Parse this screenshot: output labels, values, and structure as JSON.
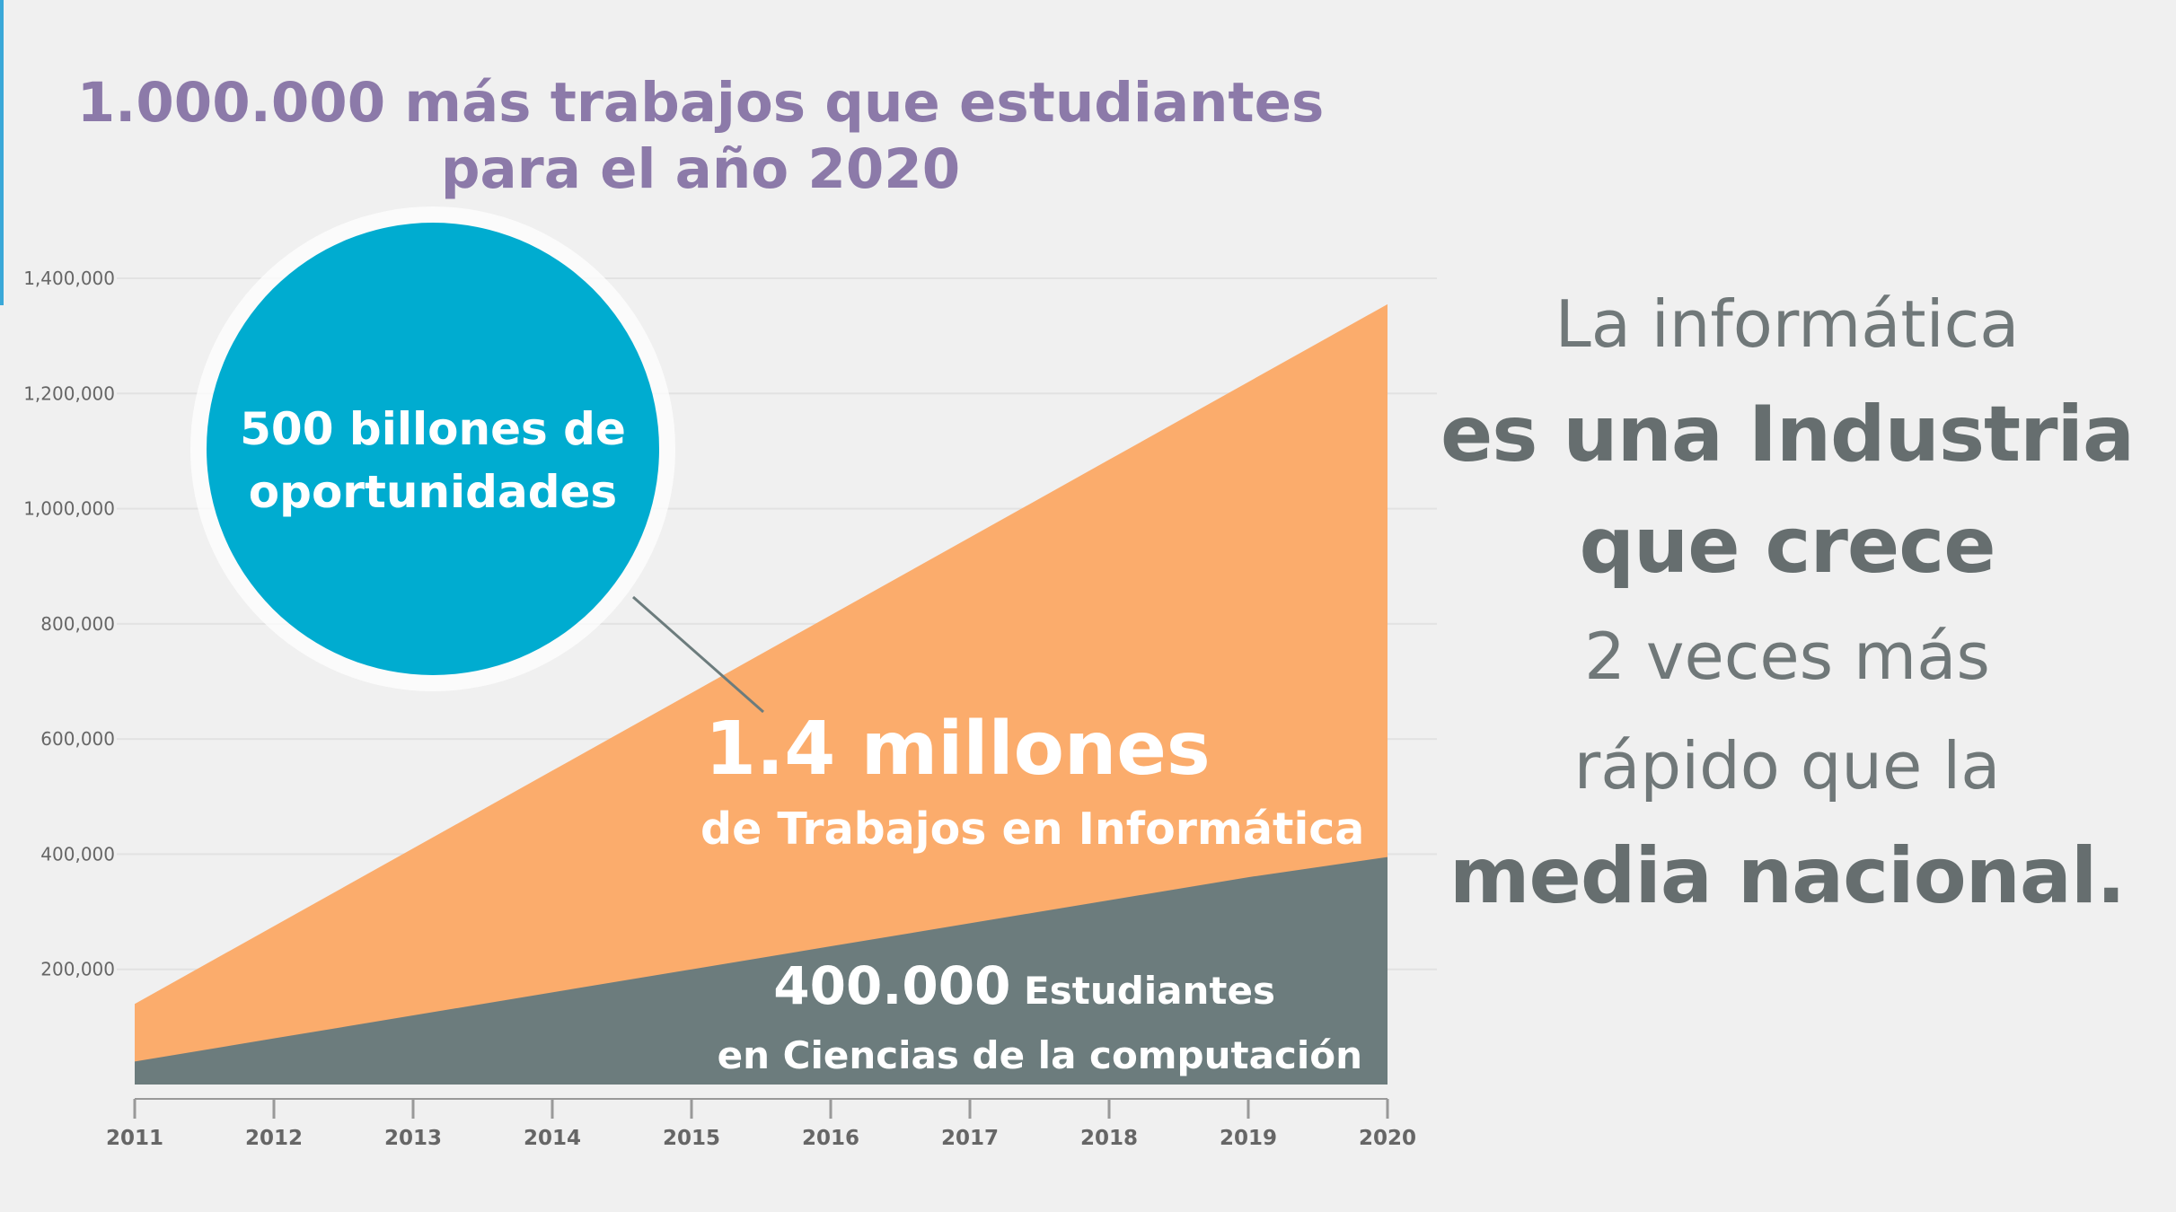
{
  "headline": {
    "line1": "1.000.000 más trabajos que estudiantes",
    "line2": "para el año 2020"
  },
  "colors": {
    "background": "#f0f0f0",
    "jobs_area": "#fbac6c",
    "students_area": "#6c7c7d",
    "bubble": "#00acd0",
    "headline": "#8c7aa9",
    "side_text": "#6e7677"
  },
  "chart_data": {
    "type": "area",
    "title": "1.000.000 más trabajos que estudiantes para el año 2020",
    "xlabel": "",
    "ylabel": "",
    "x": [
      2011,
      2012,
      2013,
      2014,
      2015,
      2016,
      2017,
      2018,
      2019,
      2020
    ],
    "ylim": [
      0,
      1400000
    ],
    "yticks": [
      200000,
      400000,
      600000,
      800000,
      1000000,
      1200000,
      1400000
    ],
    "ytick_labels": [
      "200,000",
      "400,000",
      "600,000",
      "800,000",
      "1,000,000",
      "1,200,000",
      "1,400,000"
    ],
    "xtick_labels": [
      "2011",
      "2012",
      "2013",
      "2014",
      "2015",
      "2016",
      "2017",
      "2018",
      "2019",
      "2020"
    ],
    "grid": true,
    "series": [
      {
        "name": "Trabajos en Informática",
        "values": [
          140000,
          275000,
          410000,
          545000,
          680000,
          815000,
          950000,
          1085000,
          1220000,
          1355000
        ],
        "color": "#fbac6c"
      },
      {
        "name": "Estudiantes en Ciencias de la computación",
        "values": [
          40000,
          80000,
          120000,
          160000,
          200000,
          240000,
          280000,
          320000,
          360000,
          395000
        ],
        "color": "#6c7c7d"
      }
    ],
    "annotations": {
      "bubble": {
        "line1": "500 billones de",
        "line2": "oportunidades"
      },
      "jobs": {
        "big": "1.4 millones",
        "sub": "de Trabajos en Informática"
      },
      "students": {
        "big": "400.000",
        "big_suffix": " Estudiantes",
        "sub": "en Ciencias de la computación"
      }
    }
  },
  "side_text": {
    "line1": "La informática",
    "line2": "es una Industria",
    "line3": "que crece",
    "line4": "2 veces más",
    "line5": "rápido que la",
    "line6": "media nacional."
  }
}
